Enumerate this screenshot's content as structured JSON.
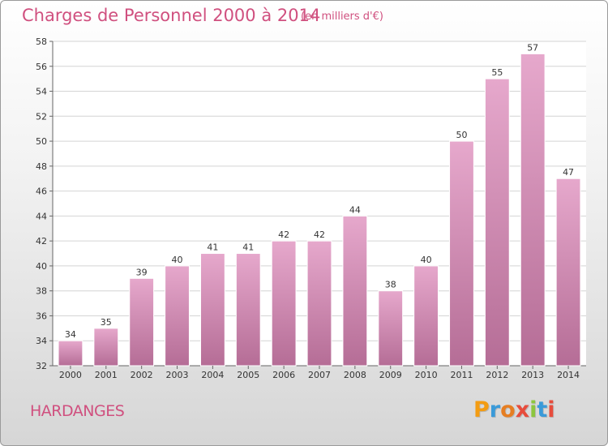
{
  "header": {
    "title": "Charges de Personnel 2000 à 2014",
    "subtitle": "(en milliers d'€)"
  },
  "footer": {
    "place": "HARDANGES",
    "brand": "Proxiti",
    "brand_colors": [
      "#f39c12",
      "#3a9ad9",
      "#e67e22",
      "#e74c3c",
      "#8cc63f",
      "#3a9ad9",
      "#e74c3c"
    ]
  },
  "colors": {
    "bar_top": "#e6a8cc",
    "bar_bottom": "#b56d96",
    "text": "#d0507f",
    "axis_text": "#333333",
    "grid": "#d4d4d4"
  },
  "chart_data": {
    "type": "bar",
    "categories": [
      "2000",
      "2001",
      "2002",
      "2003",
      "2004",
      "2005",
      "2006",
      "2007",
      "2008",
      "2009",
      "2010",
      "2011",
      "2012",
      "2013",
      "2014"
    ],
    "values": [
      34,
      35,
      39,
      40,
      41,
      41,
      42,
      42,
      44,
      38,
      40,
      50,
      55,
      57,
      47
    ],
    "ylim": [
      32,
      58
    ],
    "yticks": [
      32,
      34,
      36,
      38,
      40,
      42,
      44,
      46,
      48,
      50,
      52,
      54,
      56,
      58
    ],
    "grid": true,
    "data_labels": true
  }
}
